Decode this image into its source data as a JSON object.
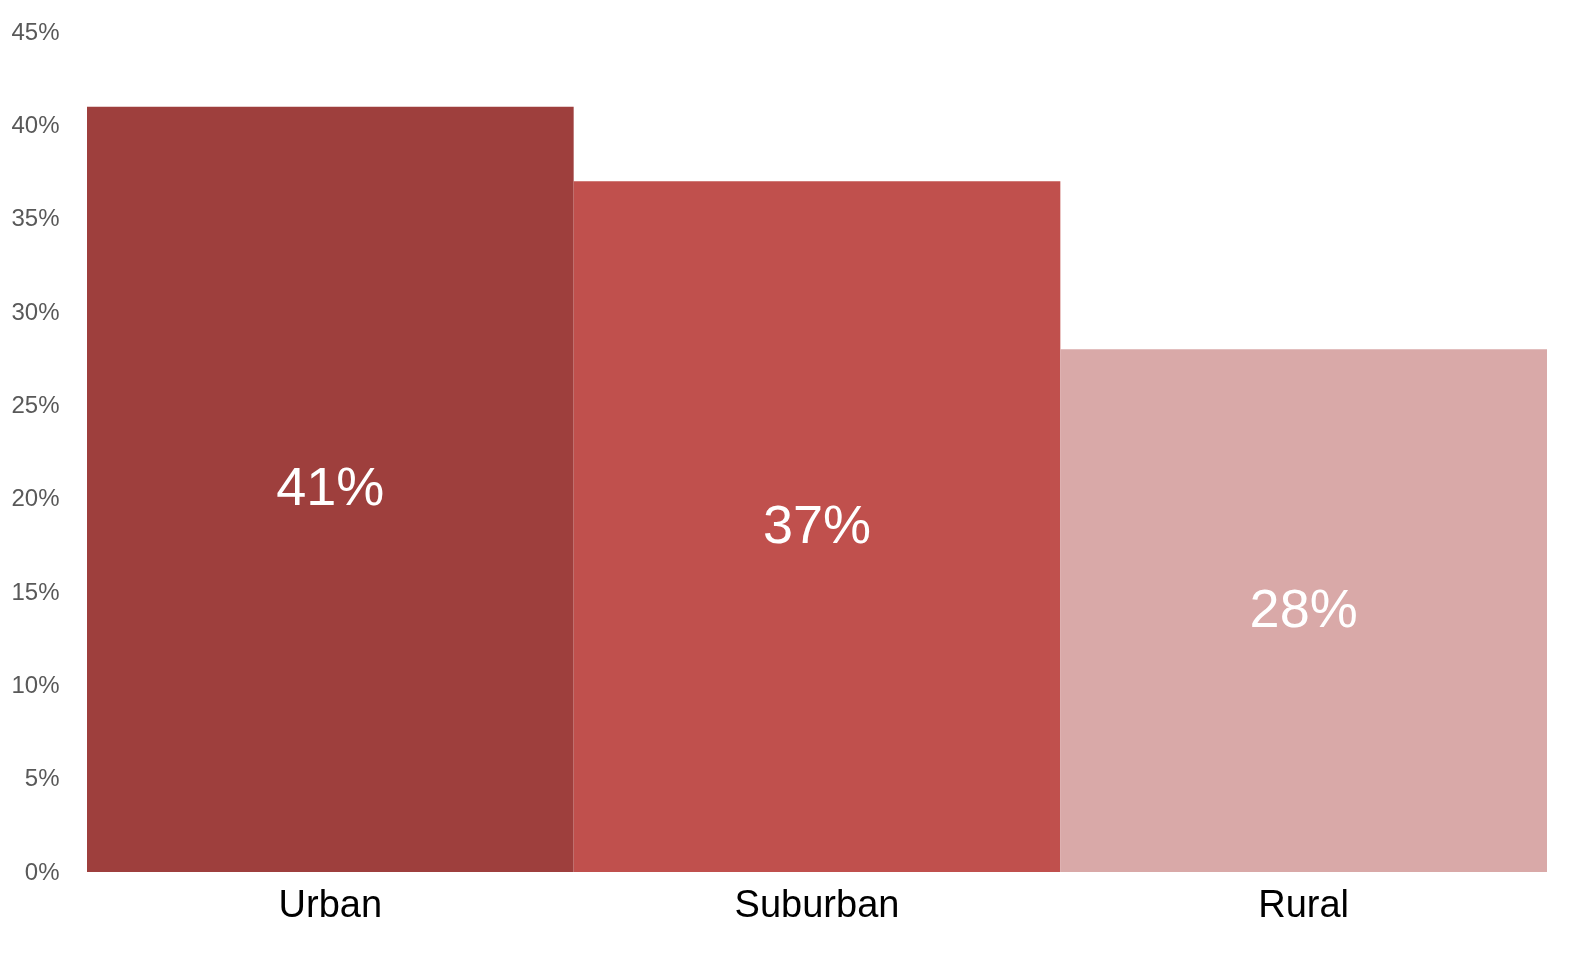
{
  "chart_data": {
    "type": "bar",
    "categories": [
      "Urban",
      "Suburban",
      "Rural"
    ],
    "values": [
      41,
      37,
      28
    ],
    "colors": [
      "#9e3f3d",
      "#c0504d",
      "#d9a9a8"
    ],
    "value_labels": [
      "41%",
      "37%",
      "28%"
    ],
    "ylim": [
      0,
      45
    ],
    "yticks": [
      {
        "value": 0,
        "label": "0%"
      },
      {
        "value": 5,
        "label": "5%"
      },
      {
        "value": 10,
        "label": "10%"
      },
      {
        "value": 15,
        "label": "15%"
      },
      {
        "value": 20,
        "label": "20%"
      },
      {
        "value": 25,
        "label": "25%"
      },
      {
        "value": 30,
        "label": "30%"
      },
      {
        "value": 35,
        "label": "35%"
      },
      {
        "value": 40,
        "label": "40%"
      },
      {
        "value": 45,
        "label": "45%"
      }
    ],
    "grid": false
  }
}
